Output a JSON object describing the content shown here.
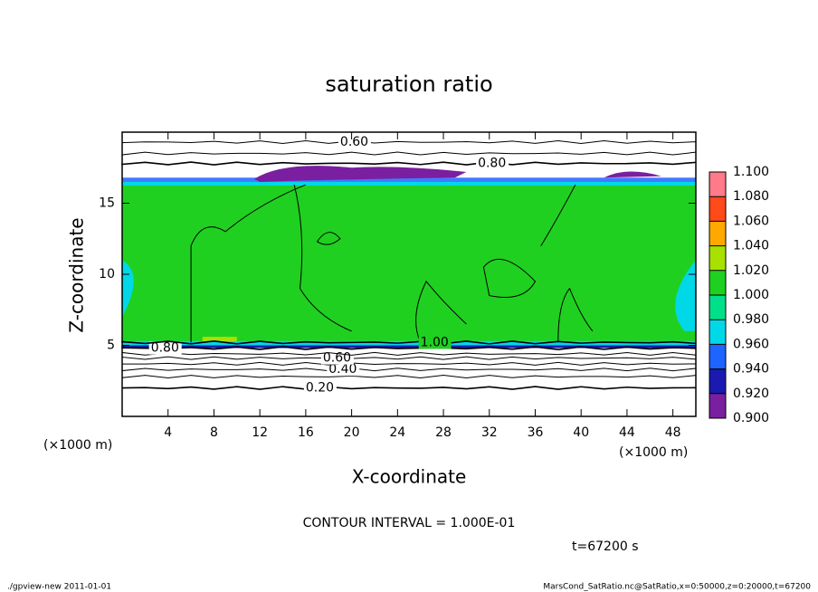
{
  "chart_data": {
    "type": "contour",
    "title": "saturation ratio",
    "x_label": "X-coordinate",
    "y_label": "Z-coordinate",
    "x_unit": "(×1000 m)",
    "xlim": [
      0,
      50
    ],
    "xticks": [
      4,
      8,
      12,
      16,
      20,
      24,
      28,
      32,
      36,
      40,
      44,
      48
    ],
    "ylim": [
      0,
      20
    ],
    "yticks": [
      5,
      10,
      15
    ],
    "contours": [
      {
        "level": 0.2,
        "label": "0.20",
        "z": 2.0
      },
      {
        "level": 0.3,
        "label": null,
        "z": 2.8
      },
      {
        "level": 0.4,
        "label": "0.40",
        "z": 3.3
      },
      {
        "level": 0.5,
        "label": null,
        "z": 3.7
      },
      {
        "level": 0.6,
        "label": "0.60",
        "z": 4.1
      },
      {
        "level": 0.7,
        "label": null,
        "z": 4.4
      },
      {
        "level": 0.8,
        "label": "0.80",
        "z": 4.8
      },
      {
        "level": 0.8,
        "label": "0.80",
        "z": 17.8
      },
      {
        "level": 0.7,
        "label": null,
        "z": 18.5
      },
      {
        "level": 0.6,
        "label": "0.60",
        "z": 19.3
      },
      {
        "level": 1.0,
        "label": "1.00",
        "z": 5.2
      }
    ],
    "colorbar": {
      "ticks": [
        {
          "value": 0.9,
          "label": "0.900"
        },
        {
          "value": 0.92,
          "label": "0.920"
        },
        {
          "value": 0.94,
          "label": "0.940"
        },
        {
          "value": 0.96,
          "label": "0.960"
        },
        {
          "value": 0.98,
          "label": "0.980"
        },
        {
          "value": 1.0,
          "label": "1.000"
        },
        {
          "value": 1.02,
          "label": "1.020"
        },
        {
          "value": 1.04,
          "label": "1.040"
        },
        {
          "value": 1.06,
          "label": "1.060"
        },
        {
          "value": 1.08,
          "label": "1.080"
        },
        {
          "value": 1.1,
          "label": "1.100"
        }
      ],
      "colors": [
        "#7a1fa0",
        "#1a1ab0",
        "#1e64ff",
        "#00d8e8",
        "#00e08a",
        "#20d020",
        "#a8e000",
        "#ffa800",
        "#ff4a1a",
        "#ff7a8a"
      ]
    },
    "contour_interval": "CONTOUR INTERVAL = 1.000E-01",
    "time": "t=67200 s",
    "footer_left": "./gpview-new  2011-01-01",
    "footer_right": "MarsCond_SatRatio.nc@SatRatio,x=0:50000,z=0:20000,t=67200"
  }
}
